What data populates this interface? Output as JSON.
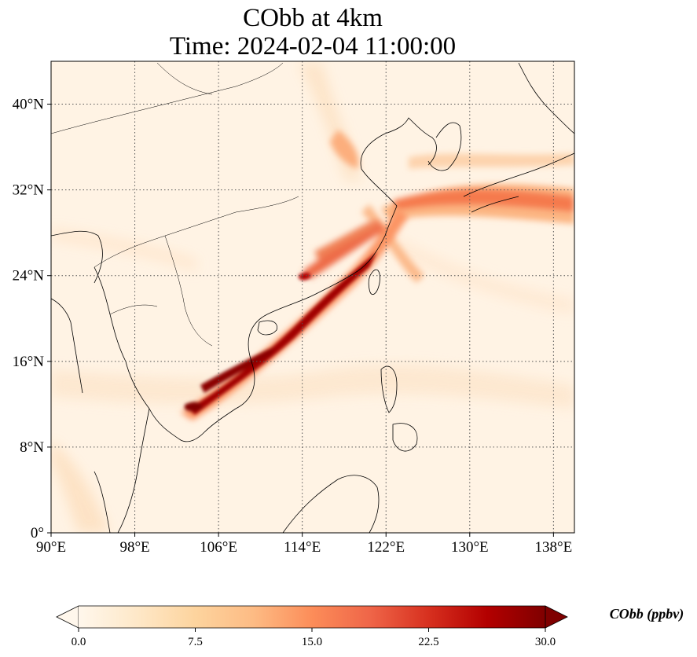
{
  "title": {
    "line1": "CObb at 4km",
    "line2": "Time: 2024-02-04 11:00:00"
  },
  "map": {
    "lon_range": [
      90,
      140
    ],
    "lat_range": [
      0,
      44
    ],
    "lon_ticks": [
      {
        "value": 90,
        "label": "90°E"
      },
      {
        "value": 98,
        "label": "98°E"
      },
      {
        "value": 106,
        "label": "106°E"
      },
      {
        "value": 114,
        "label": "114°E"
      },
      {
        "value": 122,
        "label": "122°E"
      },
      {
        "value": 130,
        "label": "130°E"
      },
      {
        "value": 138,
        "label": "138°E"
      }
    ],
    "lat_ticks": [
      {
        "value": 0,
        "label": "0°"
      },
      {
        "value": 8,
        "label": "8°N"
      },
      {
        "value": 16,
        "label": "16°N"
      },
      {
        "value": 24,
        "label": "24°N"
      },
      {
        "value": 32,
        "label": "32°N"
      },
      {
        "value": 40,
        "label": "40°N"
      }
    ],
    "gridlines": true,
    "colormap": "OrRd"
  },
  "colorbar": {
    "label": "CObb (ppbv)",
    "min": 0,
    "max": 30,
    "extend": "both",
    "ticks": [
      {
        "value": 0,
        "label": "0.0"
      },
      {
        "value": 7.5,
        "label": "7.5"
      },
      {
        "value": 15,
        "label": "15.0"
      },
      {
        "value": 22.5,
        "label": "22.5"
      },
      {
        "value": 30,
        "label": "30.0"
      }
    ],
    "colors": [
      "#fff7ec",
      "#fee8c8",
      "#fdd49e",
      "#fdbb84",
      "#fc8d59",
      "#ef6548",
      "#d7301f",
      "#b30000",
      "#7f0000"
    ]
  }
}
